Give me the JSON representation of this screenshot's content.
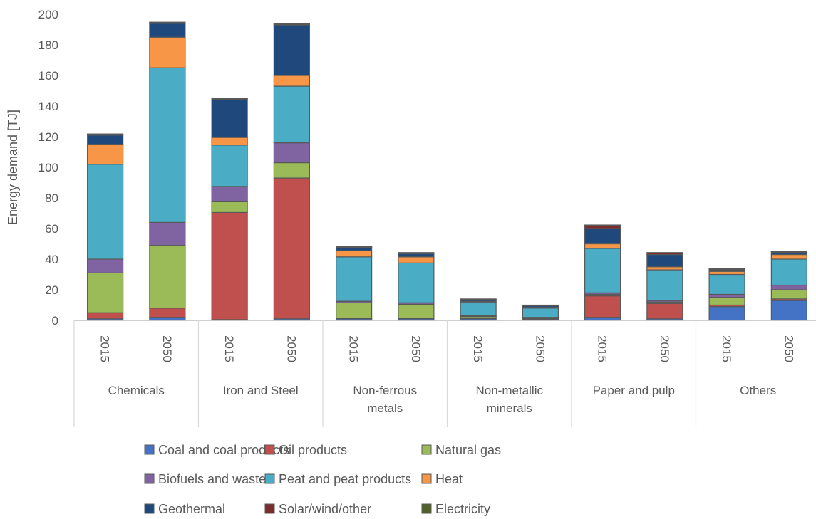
{
  "chart_data": {
    "type": "bar",
    "stacked": true,
    "title": "",
    "xlabel": "",
    "ylabel": "Energy demand [TJ]",
    "ylim": [
      0,
      200
    ],
    "yticks": [
      0,
      20,
      40,
      60,
      80,
      100,
      120,
      140,
      160,
      180,
      200
    ],
    "grid": false,
    "legend_position": "bottom",
    "groups": [
      {
        "name": "Chemicals",
        "years": [
          "2015",
          "2050"
        ]
      },
      {
        "name": "Iron and Steel",
        "years": [
          "2015",
          "2050"
        ]
      },
      {
        "name": "Non-ferrous metals",
        "years": [
          "2015",
          "2050"
        ]
      },
      {
        "name": "Non-metallic minerals",
        "years": [
          "2015",
          "2050"
        ]
      },
      {
        "name": "Paper and pulp",
        "years": [
          "2015",
          "2050"
        ]
      },
      {
        "name": "Others",
        "years": [
          "2015",
          "2050"
        ]
      }
    ],
    "group_label_lines": [
      [
        "Chemicals"
      ],
      [
        "Iron and Steel"
      ],
      [
        "Non-ferrous",
        "metals"
      ],
      [
        "Non-metallic",
        "minerals"
      ],
      [
        "Paper and pulp"
      ],
      [
        "Others"
      ]
    ],
    "series": [
      {
        "name": "Coal and coal products",
        "color": "#4472C4",
        "values": [
          1,
          2,
          0.5,
          1,
          1,
          1,
          1,
          0.5,
          2,
          1,
          9,
          13
        ]
      },
      {
        "name": "Oil products",
        "color": "#C0504D",
        "values": [
          4,
          6,
          70,
          92,
          0.5,
          0.5,
          0.5,
          0.5,
          14,
          10,
          1,
          1
        ]
      },
      {
        "name": "Natural gas",
        "color": "#9BBB59",
        "values": [
          26,
          41,
          7,
          10,
          10,
          9,
          1,
          0.5,
          1,
          1,
          5,
          6
        ]
      },
      {
        "name": "Biofuels and waste",
        "color": "#8064A2",
        "values": [
          9,
          15,
          10,
          13,
          1,
          1,
          0.5,
          0.5,
          1,
          1,
          2,
          3
        ]
      },
      {
        "name": "Peat and peat products",
        "color": "#4BACC6",
        "values": [
          62,
          101,
          27,
          37,
          29,
          26,
          9,
          6,
          29,
          20,
          13,
          17
        ]
      },
      {
        "name": "Heat",
        "color": "#F79646",
        "values": [
          13,
          20,
          5,
          7,
          4,
          4,
          0.5,
          0.5,
          3,
          2,
          2,
          3
        ]
      },
      {
        "name": "Geothermal",
        "color": "#1F497D",
        "values": [
          6,
          9,
          25,
          33,
          2,
          2,
          1,
          1,
          10,
          8,
          1,
          1.5
        ]
      },
      {
        "name": "Solar/wind/other",
        "color": "#7B2C2C",
        "values": [
          0.5,
          0.5,
          0.5,
          0.5,
          0.5,
          0.5,
          0.3,
          0.3,
          2,
          1,
          0.5,
          0.5
        ]
      },
      {
        "name": "Electricity",
        "color": "#4F6228",
        "values": [
          0.3,
          0.3,
          0.3,
          0.3,
          0.3,
          0.3,
          0.2,
          0.2,
          0.3,
          0.3,
          0.2,
          0.2
        ]
      }
    ]
  }
}
